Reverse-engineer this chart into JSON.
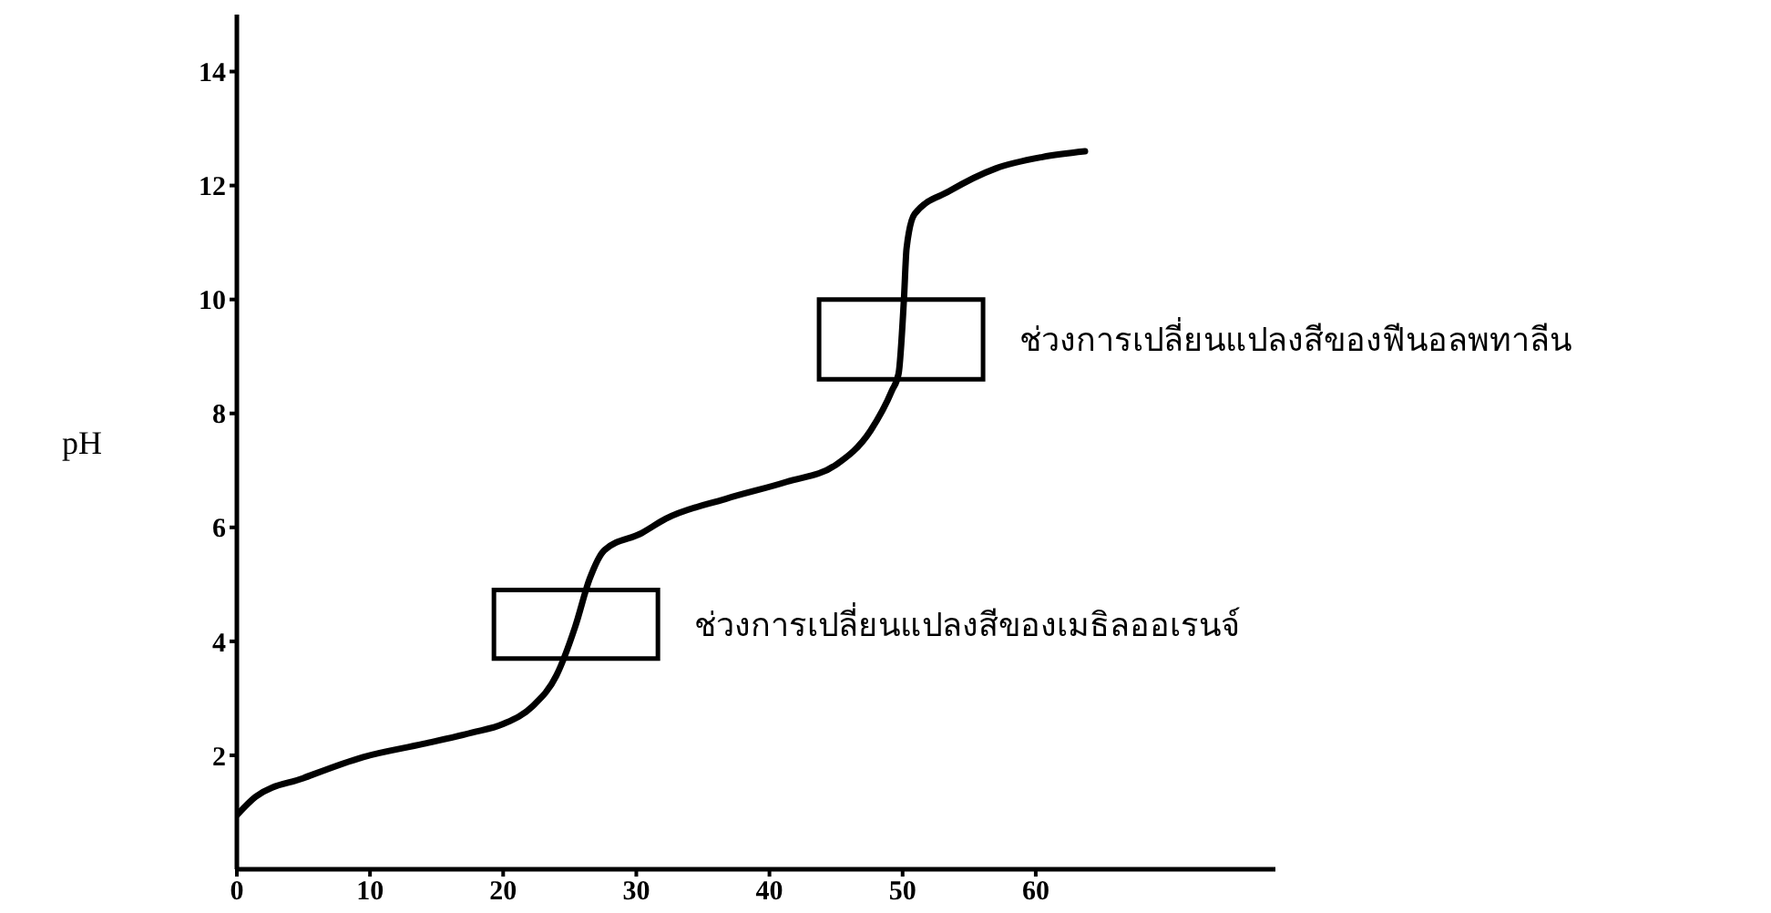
{
  "chart_data": {
    "type": "line",
    "ylabel": "pH",
    "x": [
      0,
      1.4,
      5,
      9.5,
      14,
      17.7,
      20,
      22.2,
      24,
      25.4,
      26.5,
      27.6,
      30.4,
      32.2,
      36.7,
      41.3,
      45,
      47.6,
      49.2,
      49.7,
      50.1,
      50.3,
      50.9,
      53.5,
      57,
      60.5,
      63.7
    ],
    "series": [
      {
        "color": "#000000",
        "values": [
          0.95,
          1.27,
          1.6,
          1.97,
          2.2,
          2.4,
          2.55,
          2.86,
          3.4,
          4.25,
          5.1,
          5.6,
          5.9,
          6.15,
          6.5,
          6.8,
          7.1,
          7.7,
          8.4,
          8.7,
          10,
          10.9,
          11.5,
          11.9,
          12.3,
          12.5,
          12.6
        ]
      }
    ],
    "xlim": [
      0,
      78
    ],
    "xticks": [
      0,
      10,
      20,
      30,
      40,
      50,
      60
    ],
    "ylim": [
      0,
      15
    ],
    "yticks": [
      2,
      4,
      6,
      8,
      10,
      12,
      14
    ],
    "bands": [
      {
        "axis": "y",
        "from": 3.7,
        "to": 4.9,
        "label": "ช่วงการเปลี่ยนแปลงสีของเมธิลออเรนจ์"
      },
      {
        "axis": "y",
        "from": 8.6,
        "to": 10,
        "label": "ช่วงการเปลี่ยนแปลงสีของฟีนอลพทาลีน"
      }
    ],
    "marker": "none",
    "line_style": "solid"
  }
}
